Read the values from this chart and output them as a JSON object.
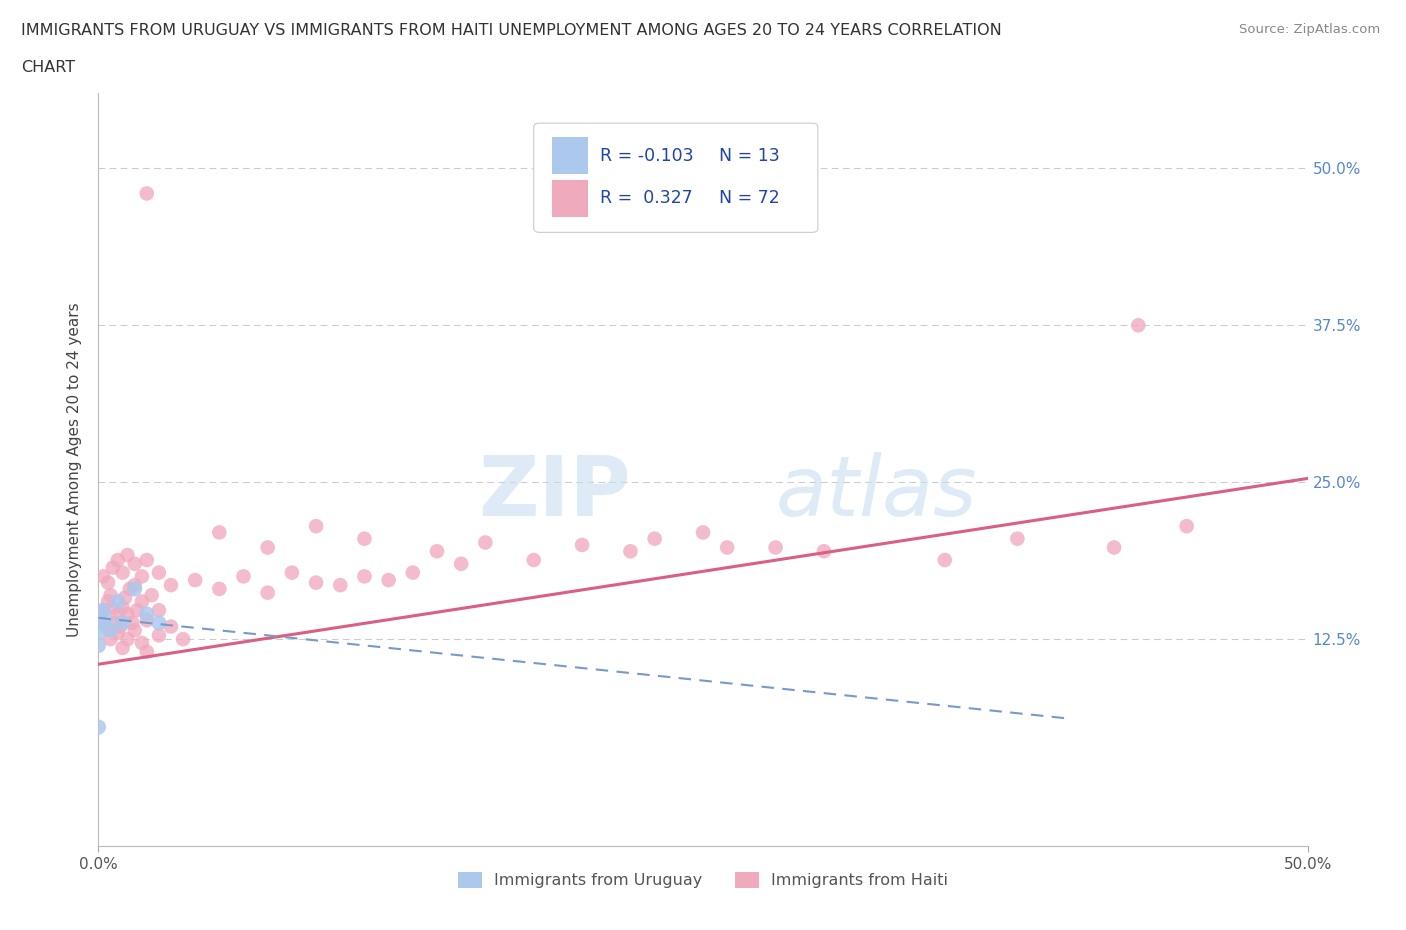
{
  "title_line1": "IMMIGRANTS FROM URUGUAY VS IMMIGRANTS FROM HAITI UNEMPLOYMENT AMONG AGES 20 TO 24 YEARS CORRELATION",
  "title_line2": "CHART",
  "source": "Source: ZipAtlas.com",
  "ylabel": "Unemployment Among Ages 20 to 24 years",
  "ytick_vals": [
    0.125,
    0.25,
    0.375,
    0.5
  ],
  "ytick_labels": [
    "12.5%",
    "25.0%",
    "37.5%",
    "50.0%"
  ],
  "xlim": [
    0.0,
    0.5
  ],
  "ylim": [
    -0.04,
    0.56
  ],
  "legend_R_uruguay": "-0.103",
  "legend_N_uruguay": "13",
  "legend_R_haiti": "0.327",
  "legend_N_haiti": "72",
  "color_uruguay": "#adc8ed",
  "color_haiti": "#f0aabe",
  "color_trendline_uruguay": "#7799cc",
  "color_trendline_haiti": "#d96080",
  "watermark_zip": "ZIP",
  "watermark_atlas": "atlas",
  "legend_label_uruguay": "Immigrants from Uruguay",
  "legend_label_haiti": "Immigrants from Haiti",
  "haiti_trend_x0": 0.0,
  "haiti_trend_y0": 0.105,
  "haiti_trend_x1": 0.5,
  "haiti_trend_y1": 0.253,
  "uru_trend_x0": 0.0,
  "uru_trend_y0": 0.142,
  "uru_trend_x1": 0.4,
  "uru_trend_y1": 0.062,
  "background_color": "#ffffff",
  "grid_color": "#cccccc"
}
